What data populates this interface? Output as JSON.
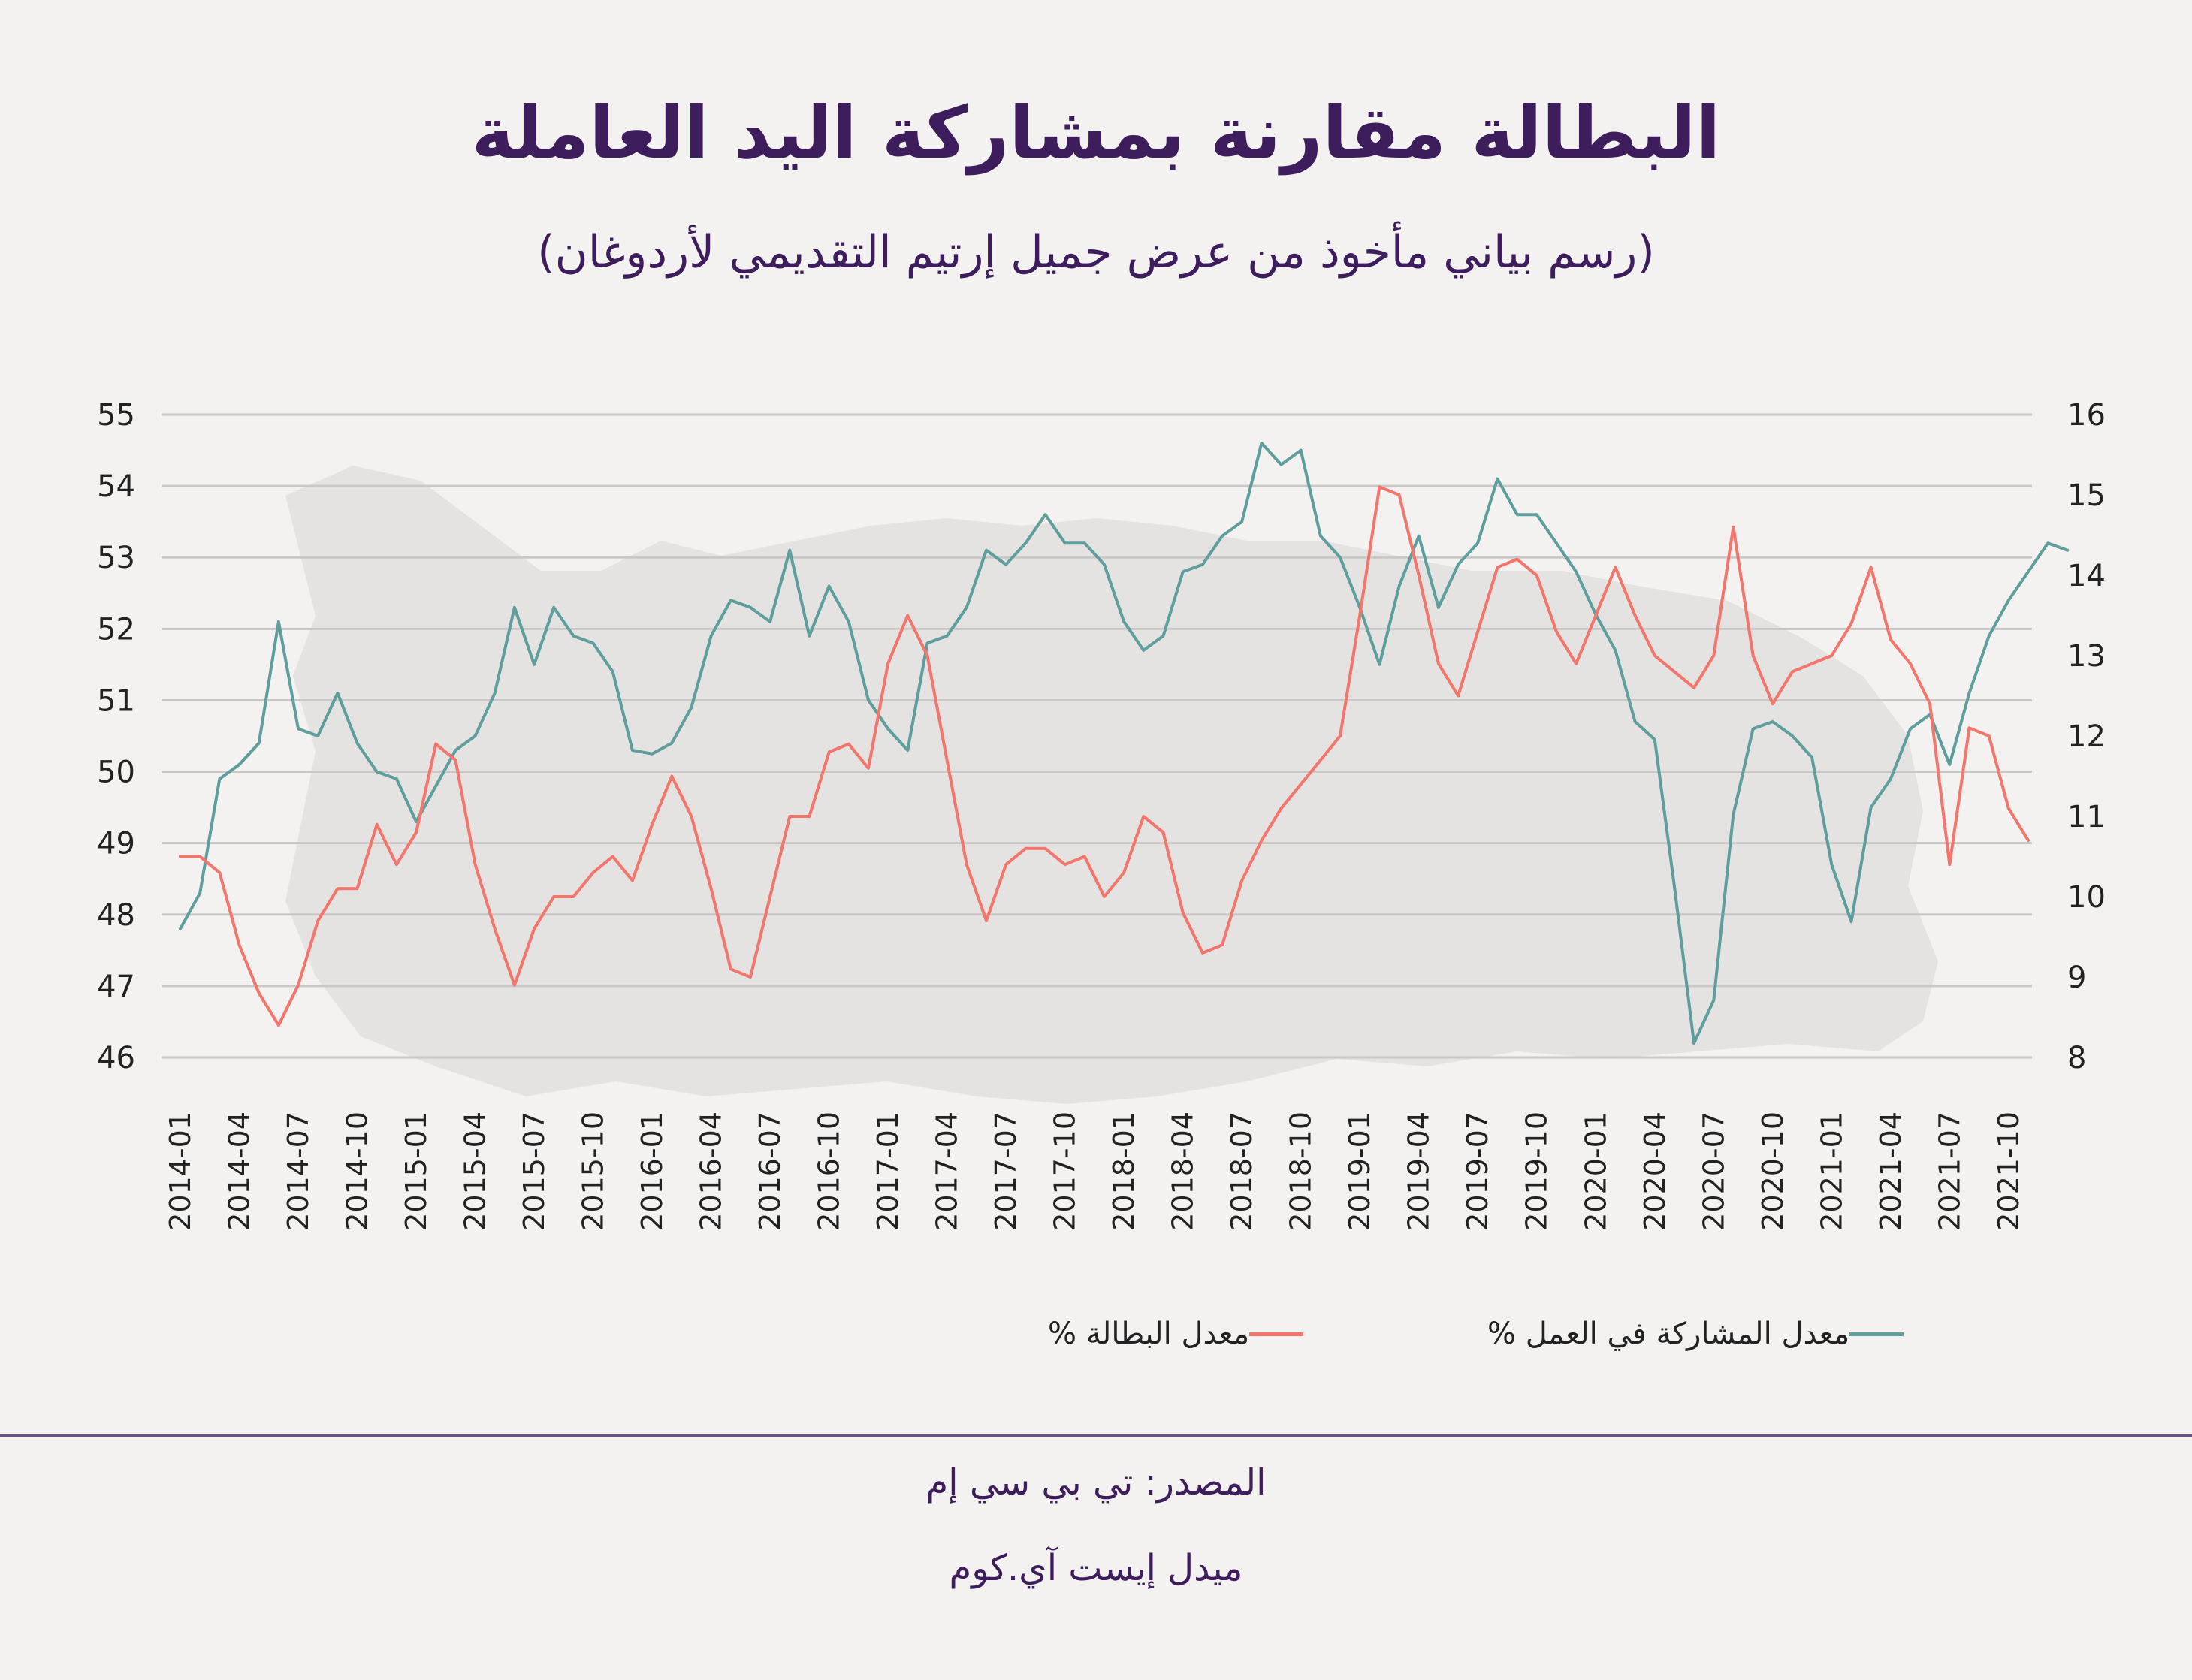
{
  "header": {
    "title": "البطالة مقارنة بمشاركة اليد العاملة",
    "subtitle": "(رسم بياني مأخوذ من عرض جميل إرتيم التقديمي لأردوغان)"
  },
  "chart_data": {
    "type": "line",
    "title": "البطالة مقارنة بمشاركة اليد العاملة",
    "subtitle": "(رسم بياني مأخوذ من عرض جميل إرتيم التقديمي لأردوغان)",
    "x_start": "2014-01",
    "x_tick_labels": [
      "2014-01",
      "2014-04",
      "2014-07",
      "2014-10",
      "2015-01",
      "2015-04",
      "2015-07",
      "2015-10",
      "2016-01",
      "2016-04",
      "2016-07",
      "2016-10",
      "2017-01",
      "2017-04",
      "2017-07",
      "2017-10",
      "2018-01",
      "2018-04",
      "2018-07",
      "2018-10",
      "2019-01",
      "2019-04",
      "2019-07",
      "2019-10",
      "2020-01",
      "2020-04",
      "2020-07",
      "2020-10",
      "2021-01",
      "2021-04",
      "2021-07",
      "2021-10"
    ],
    "left_axis": {
      "min": 46,
      "max": 55,
      "ticks": [
        46,
        47,
        48,
        49,
        50,
        51,
        52,
        53,
        54,
        55
      ]
    },
    "right_axis": {
      "min": 8,
      "max": 16,
      "ticks": [
        8,
        9,
        10,
        11,
        12,
        13,
        14,
        15,
        16
      ]
    },
    "grid": true,
    "legend_position": "bottom",
    "series": [
      {
        "name": "معدل المشاركة في العمل %",
        "axis": "left",
        "color": "#5e9e9c",
        "values": [
          47.8,
          48.3,
          49.9,
          50.1,
          50.4,
          52.1,
          50.6,
          50.5,
          51.1,
          50.4,
          50.0,
          49.9,
          49.3,
          49.8,
          50.3,
          50.5,
          51.1,
          52.3,
          51.5,
          52.3,
          51.9,
          51.8,
          51.4,
          50.3,
          50.25,
          50.4,
          50.9,
          51.9,
          52.4,
          52.3,
          52.1,
          53.1,
          51.9,
          52.6,
          52.1,
          51.0,
          50.6,
          50.3,
          51.8,
          51.9,
          52.3,
          53.1,
          52.9,
          53.2,
          53.6,
          53.2,
          53.2,
          52.9,
          52.1,
          51.7,
          51.9,
          52.8,
          52.9,
          53.3,
          53.5,
          54.6,
          54.3,
          54.5,
          53.3,
          53.0,
          52.3,
          51.5,
          52.6,
          53.3,
          52.3,
          52.9,
          53.2,
          54.1,
          53.6,
          53.6,
          53.2,
          52.8,
          52.2,
          51.7,
          50.7,
          50.45,
          48.4,
          46.2,
          46.8,
          49.4,
          50.6,
          50.7,
          50.5,
          50.2,
          48.7,
          47.9,
          49.5,
          49.9,
          50.6,
          50.8,
          50.1,
          51.1,
          51.9,
          52.4,
          52.8,
          53.2,
          53.1
        ],
        "x_start_index": 0
      },
      {
        "name": "معدل البطالة %",
        "axis": "right",
        "color": "#f3756b",
        "values": [
          10.5,
          10.5,
          10.3,
          9.4,
          8.8,
          8.4,
          8.9,
          9.7,
          10.1,
          10.1,
          10.9,
          10.4,
          10.8,
          11.9,
          11.7,
          10.4,
          9.6,
          8.9,
          9.6,
          10.0,
          10.0,
          10.3,
          10.5,
          10.2,
          10.9,
          11.5,
          11.0,
          10.1,
          9.1,
          9.0,
          10.0,
          11.0,
          11.0,
          11.8,
          11.9,
          11.6,
          12.9,
          13.5,
          13.0,
          11.7,
          10.4,
          9.7,
          10.4,
          10.6,
          10.6,
          10.4,
          10.5,
          10.0,
          10.3,
          11.0,
          10.8,
          9.8,
          9.3,
          9.4,
          10.2,
          10.7,
          11.1,
          11.4,
          11.7,
          12.0,
          13.5,
          15.1,
          15.0,
          14.0,
          12.9,
          12.5,
          13.3,
          14.1,
          14.2,
          14.0,
          13.3,
          12.9,
          13.5,
          14.1,
          13.5,
          13.0,
          12.8,
          12.6,
          13.0,
          14.6,
          13.0,
          12.4,
          12.8,
          12.9,
          13.0,
          13.4,
          14.1,
          13.2,
          12.9,
          12.4,
          10.4,
          12.1,
          12.0,
          11.1,
          10.7
        ],
        "x_start_index": 0
      }
    ]
  },
  "legend": {
    "participation_label": "معدل المشاركة في العمل %",
    "unemployment_label": "معدل البطالة %",
    "participation_color": "#5e9e9c",
    "unemployment_color": "#f3756b"
  },
  "footer": {
    "source": "المصدر: تي بي سي إم",
    "site": "ميدل إيست آي.كوم"
  }
}
